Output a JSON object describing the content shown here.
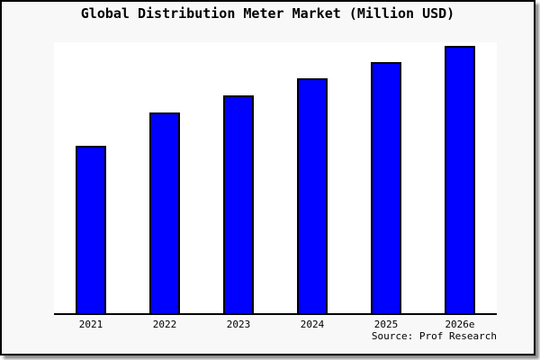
{
  "chart_data": {
    "type": "bar",
    "title": "Global Distribution Meter Market (Million USD)",
    "categories": [
      "2021",
      "2022",
      "2023",
      "2024",
      "2025",
      "2026e"
    ],
    "values": [
      61.8,
      74.1,
      80.4,
      86.7,
      92.7,
      98.7
    ],
    "values_are": "relative bar heights in percent of plot height; no y-axis scale shown in image",
    "xlabel": "",
    "ylabel": "",
    "ylim": [
      0,
      100
    ],
    "y_axis_visible": false,
    "grid": false,
    "legend": false,
    "source_note": "Source: Prof Research",
    "colors": {
      "bar_fill": "#0000FF",
      "bar_edge": "#000000",
      "figure_background": "#F8F8F8",
      "plot_background": "#FFFFFF",
      "frame_border": "#000000",
      "title_text": "#000000"
    }
  }
}
